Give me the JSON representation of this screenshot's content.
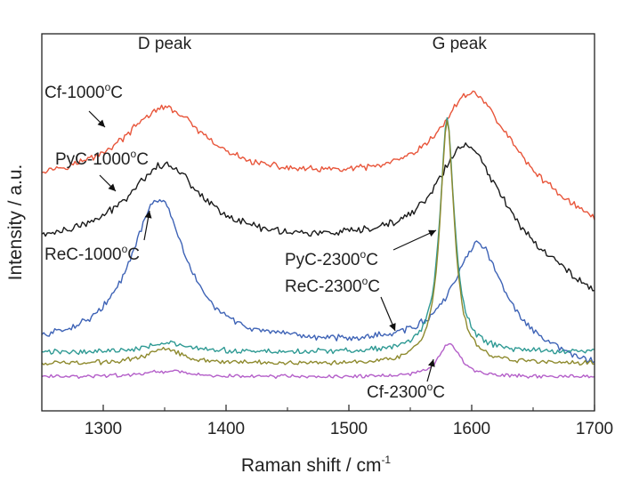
{
  "chart_data": {
    "type": "line",
    "xlabel": "Raman shift / cm",
    "xlabel_sup": "-1",
    "ylabel": "Intensity / a.u.",
    "xlim": [
      1250,
      1700
    ],
    "ylim": [
      0,
      1
    ],
    "x_ticks": [
      1300,
      1400,
      1500,
      1600,
      1700
    ],
    "y_ticks_shown": false,
    "grid": false,
    "peak_labels": [
      {
        "text": "D peak",
        "x": 1350,
        "y": 0.96
      },
      {
        "text": "G peak",
        "x": 1590,
        "y": 0.96
      }
    ],
    "series": [
      {
        "key": "cf1000",
        "name": "Cf-1000°C",
        "label_main": "Cf-1000",
        "label_sup": "o",
        "label_tail": "C",
        "color": "#e8553a",
        "baseline": 0.61,
        "peaks": [
          {
            "center": 1350,
            "width": 80,
            "height": 0.19
          },
          {
            "center": 1600,
            "width": 60,
            "height": 0.23
          }
        ],
        "decay_after": 1630,
        "decay_drop": 0.12,
        "noise": 0.007
      },
      {
        "key": "pyc1000",
        "name": "PyC-1000°C",
        "label_main": "PyC-1000",
        "label_sup": "o",
        "label_tail": "C",
        "color": "#1a1a1a",
        "baseline": 0.44,
        "peaks": [
          {
            "center": 1350,
            "width": 75,
            "height": 0.21
          },
          {
            "center": 1595,
            "width": 58,
            "height": 0.26
          }
        ],
        "decay_after": 1625,
        "decay_drop": 0.14,
        "noise": 0.008
      },
      {
        "key": "rec1000",
        "name": "ReC-1000°C",
        "label_main": "ReC-1000",
        "label_sup": "o",
        "label_tail": "C",
        "color": "#3e63b6",
        "baseline": 0.17,
        "peaks": [
          {
            "center": 1345,
            "width": 55,
            "height": 0.39
          },
          {
            "center": 1605,
            "width": 48,
            "height": 0.27
          }
        ],
        "decay_after": 1625,
        "decay_drop": 0.06,
        "noise": 0.007
      },
      {
        "key": "pyc2300",
        "name": "PyC-2300°C",
        "label_main": "PyC-2300",
        "label_sup": "o",
        "label_tail": "C",
        "color": "#2f9a94",
        "baseline": 0.155,
        "peaks": [
          {
            "center": 1350,
            "width": 40,
            "height": 0.025
          },
          {
            "center": 1580,
            "width": 14,
            "height": 0.62
          }
        ],
        "decay_after": 1700,
        "decay_drop": 0,
        "noise": 0.006
      },
      {
        "key": "rec2300",
        "name": "ReC-2300°C",
        "label_main": "ReC-2300",
        "label_sup": "o",
        "label_tail": "C",
        "color": "#8e8a2e",
        "baseline": 0.125,
        "peaks": [
          {
            "center": 1350,
            "width": 35,
            "height": 0.04
          },
          {
            "center": 1580,
            "width": 14,
            "height": 0.64
          }
        ],
        "decay_after": 1700,
        "decay_drop": 0,
        "noise": 0.005
      },
      {
        "key": "cf2300",
        "name": "Cf-2300°C",
        "label_main": "Cf-2300",
        "label_sup": "o",
        "label_tail": "C",
        "color": "#b45fc9",
        "baseline": 0.09,
        "peaks": [
          {
            "center": 1350,
            "width": 45,
            "height": 0.015
          },
          {
            "center": 1582,
            "width": 20,
            "height": 0.09
          }
        ],
        "decay_after": 1700,
        "decay_drop": 0,
        "noise": 0.004
      }
    ]
  }
}
